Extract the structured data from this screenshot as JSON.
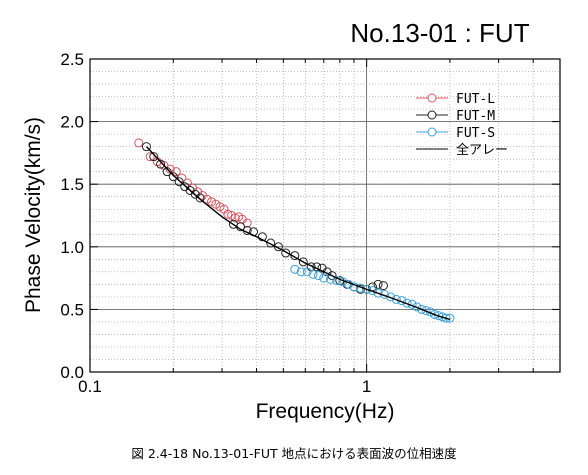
{
  "colors": {
    "fut_l": "#d9535e",
    "fut_m": "#222222",
    "fut_s": "#3ba0d8",
    "fit": "#000000"
  },
  "caption": "図 2.4-18  No.13-01-FUT 地点における表面波の位相速度",
  "chart_data": {
    "type": "scatter",
    "title": "No.13-01 : FUT",
    "xlabel": "Frequency(Hz)",
    "ylabel": "Phase Velocity(km/s)",
    "xscale": "log",
    "xlim": [
      0.1,
      5
    ],
    "ylim": [
      0.0,
      2.5
    ],
    "xticks": [
      0.1,
      1
    ],
    "xtick_labels": [
      "0.1",
      "1"
    ],
    "yticks": [
      0.0,
      0.5,
      1.0,
      1.5,
      2.0,
      2.5
    ],
    "ytick_labels": [
      "0.0",
      "0.5",
      "1.0",
      "1.5",
      "2.0",
      "2.5"
    ],
    "grid": true,
    "legend_position": "top-right",
    "series": [
      {
        "name": "FUT-L",
        "marker": "open-circle",
        "color": "#d9535e",
        "x": [
          0.15,
          0.165,
          0.175,
          0.185,
          0.195,
          0.205,
          0.215,
          0.225,
          0.235,
          0.245,
          0.255,
          0.265,
          0.275,
          0.285,
          0.295,
          0.305,
          0.315,
          0.325,
          0.335,
          0.345,
          0.355,
          0.37
        ],
        "y": [
          1.83,
          1.72,
          1.68,
          1.65,
          1.62,
          1.6,
          1.55,
          1.51,
          1.47,
          1.44,
          1.41,
          1.38,
          1.36,
          1.34,
          1.32,
          1.3,
          1.26,
          1.25,
          1.23,
          1.24,
          1.22,
          1.19
        ]
      },
      {
        "name": "FUT-M",
        "marker": "open-circle",
        "color": "#222222",
        "x": [
          0.16,
          0.17,
          0.18,
          0.19,
          0.2,
          0.21,
          0.22,
          0.23,
          0.24,
          0.25,
          0.33,
          0.35,
          0.37,
          0.39,
          0.42,
          0.45,
          0.48,
          0.51,
          0.55,
          0.59,
          0.63,
          0.66,
          0.69,
          0.72,
          0.75,
          0.8,
          0.85,
          0.9,
          0.95,
          1.0,
          1.05,
          1.1,
          1.15
        ],
        "y": [
          1.8,
          1.72,
          1.66,
          1.6,
          1.56,
          1.52,
          1.48,
          1.45,
          1.42,
          1.39,
          1.18,
          1.16,
          1.13,
          1.12,
          1.08,
          1.03,
          1.0,
          0.95,
          0.93,
          0.88,
          0.84,
          0.84,
          0.83,
          0.8,
          0.77,
          0.73,
          0.7,
          0.68,
          0.66,
          0.66,
          0.68,
          0.7,
          0.69
        ]
      },
      {
        "name": "FUT-S",
        "marker": "open-circle",
        "color": "#3ba0d8",
        "x": [
          0.55,
          0.58,
          0.61,
          0.64,
          0.67,
          0.7,
          0.74,
          0.78,
          0.82,
          0.86,
          0.9,
          0.95,
          1.0,
          1.05,
          1.1,
          1.16,
          1.22,
          1.28,
          1.34,
          1.4,
          1.46,
          1.52,
          1.58,
          1.64,
          1.7,
          1.76,
          1.82,
          1.88,
          1.94,
          2.0
        ],
        "y": [
          0.82,
          0.8,
          0.8,
          0.78,
          0.77,
          0.75,
          0.74,
          0.73,
          0.72,
          0.7,
          0.68,
          0.67,
          0.66,
          0.65,
          0.63,
          0.62,
          0.6,
          0.58,
          0.57,
          0.55,
          0.54,
          0.52,
          0.5,
          0.49,
          0.48,
          0.46,
          0.45,
          0.44,
          0.43,
          0.43
        ]
      },
      {
        "name": "全アレー",
        "marker": "line",
        "color": "#000000",
        "x": [
          0.16,
          0.2,
          0.25,
          0.3,
          0.35,
          0.4,
          0.5,
          0.6,
          0.7,
          0.8,
          1.0,
          1.2,
          1.5,
          1.8,
          2.0
        ],
        "y": [
          1.8,
          1.57,
          1.38,
          1.24,
          1.14,
          1.08,
          0.97,
          0.87,
          0.8,
          0.74,
          0.66,
          0.6,
          0.52,
          0.45,
          0.42
        ]
      }
    ]
  }
}
